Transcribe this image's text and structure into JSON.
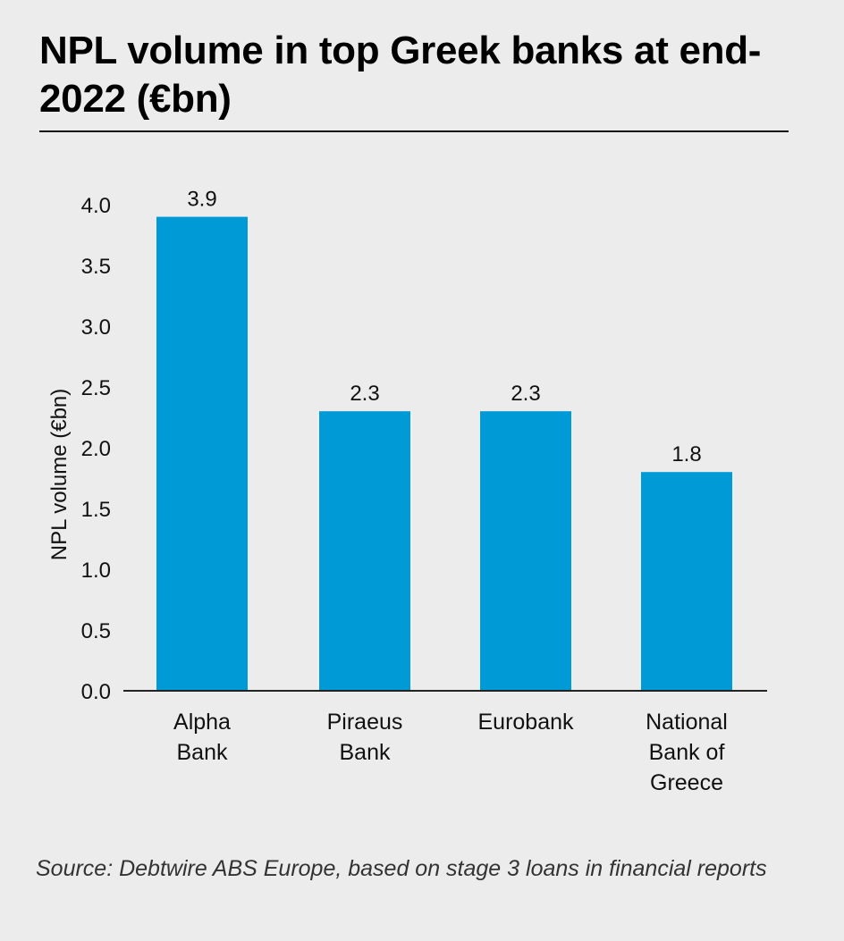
{
  "header": {
    "title": "NPL volume in top Greek banks at end-2022 (€bn)"
  },
  "footer": {
    "source": "Source: Debtwire ABS Europe, based on stage 3 loans in financial reports"
  },
  "colors": {
    "bar": "#009ad6",
    "axis": "#222222",
    "background": "#ececec"
  },
  "chart_data": {
    "type": "bar",
    "title": "NPL volume in top Greek banks at end-2022 (€bn)",
    "ylabel": "NPL volume (€bn)",
    "xlabel": "",
    "categories": [
      [
        "Alpha",
        "Bank"
      ],
      [
        "Piraeus",
        "Bank"
      ],
      [
        "Eurobank"
      ],
      [
        "National",
        "Bank of",
        "Greece"
      ]
    ],
    "values": [
      3.9,
      2.3,
      2.3,
      1.8
    ],
    "value_labels": [
      "3.9",
      "2.3",
      "2.3",
      "1.8"
    ],
    "ylim": [
      0,
      4.0
    ],
    "yticks": [
      "0.0",
      "0.5",
      "1.0",
      "1.5",
      "2.0",
      "2.5",
      "3.0",
      "3.5",
      "4.0"
    ],
    "grid": false,
    "legend": "none"
  }
}
